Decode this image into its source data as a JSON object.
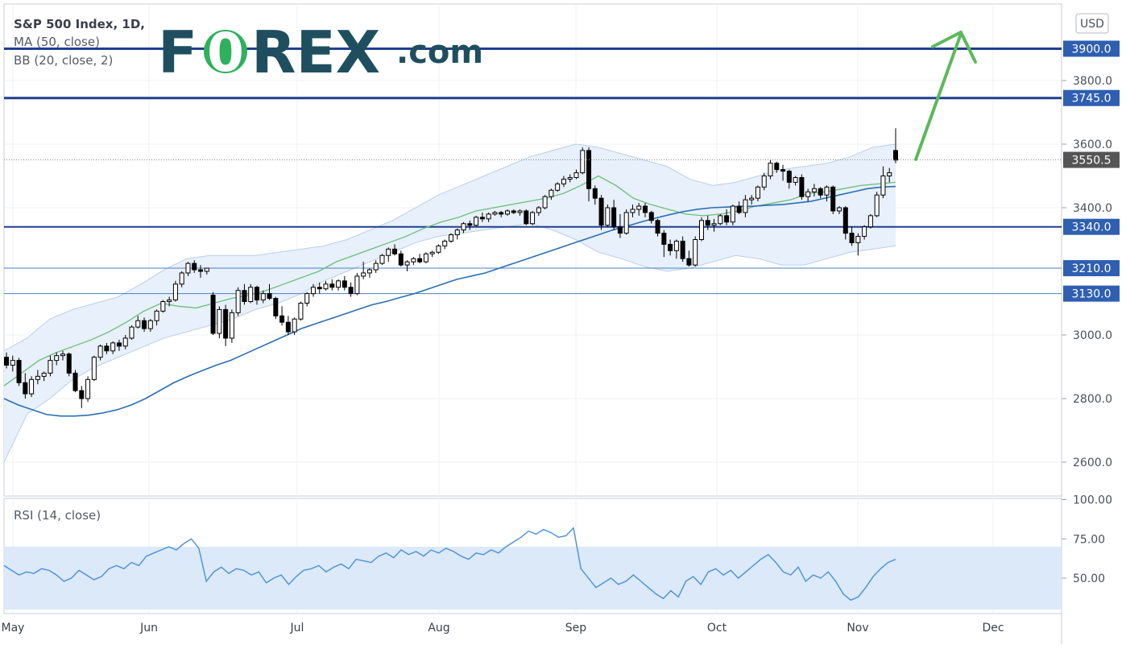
{
  "brand": {
    "logo_prefix": "F",
    "logo_o": "0",
    "logo_suffix": "REX",
    "logo_domain": ".com",
    "color_primary": "#1f4f5f",
    "color_accent": "#2eb15c"
  },
  "indicators": {
    "title": "S&P 500 Index, 1D,",
    "ma": "MA (50, close)",
    "bb": "BB (20, close, 2)",
    "rsi": "RSI (14, close)"
  },
  "currency_button": "USD",
  "colors": {
    "up_candle": "#ffffff",
    "down_candle": "#000000",
    "ma_line": "#2a6fb5",
    "bb_mid": "#6abf77",
    "bb_fill": "#e7f0fb",
    "bb_edge": "#b9cfe6",
    "level_line": "#1f3f8f",
    "level_tag": "#2f5fb0",
    "price_tag": "#555555",
    "rsi_line": "#4a90d9",
    "rsi_band": "#dbe9f8",
    "arrow": "#5cb85c"
  },
  "chart_data": [
    {
      "type": "candlestick",
      "name": "S&P 500 Index, 1D",
      "yaxis_ticks": [
        2600.0,
        2800.0,
        3000.0,
        3400.0,
        3600.0,
        3800.0
      ],
      "yaxis_tick_labels": [
        "2600.0",
        "2800.0",
        "3000.0",
        "3400.0",
        "3600.0",
        "3800.0"
      ],
      "ylim": [
        2500,
        4050
      ],
      "xaxis_labels": [
        "May",
        "Jun",
        "Jul",
        "Aug",
        "Sep",
        "Oct",
        "Nov",
        "Dec"
      ],
      "levels": [
        {
          "value": 3900.0,
          "label": "3900.0",
          "style": "thick"
        },
        {
          "value": 3745.0,
          "label": "3745.0",
          "style": "thick"
        },
        {
          "value": 3340.0,
          "label": "3340.0",
          "style": "medium"
        },
        {
          "value": 3210.0,
          "label": "3210.0",
          "style": "thin"
        },
        {
          "value": 3130.0,
          "label": "3130.0",
          "style": "thin"
        }
      ],
      "last_price": {
        "value": 3550.5,
        "label": "3550.5"
      },
      "candles_ohlc": [
        [
          2930,
          2945,
          2895,
          2905
        ],
        [
          2905,
          2935,
          2885,
          2920
        ],
        [
          2920,
          2928,
          2840,
          2850
        ],
        [
          2850,
          2880,
          2800,
          2815
        ],
        [
          2815,
          2870,
          2805,
          2860
        ],
        [
          2860,
          2890,
          2845,
          2870
        ],
        [
          2870,
          2885,
          2855,
          2880
        ],
        [
          2880,
          2935,
          2870,
          2920
        ],
        [
          2920,
          2945,
          2905,
          2935
        ],
        [
          2935,
          2950,
          2920,
          2940
        ],
        [
          2940,
          2945,
          2870,
          2880
        ],
        [
          2880,
          2890,
          2820,
          2825
        ],
        [
          2825,
          2840,
          2770,
          2800
        ],
        [
          2800,
          2870,
          2790,
          2860
        ],
        [
          2860,
          2935,
          2855,
          2930
        ],
        [
          2930,
          2970,
          2920,
          2965
        ],
        [
          2965,
          2975,
          2940,
          2950
        ],
        [
          2950,
          2980,
          2940,
          2975
        ],
        [
          2975,
          2985,
          2950,
          2965
        ],
        [
          2965,
          3000,
          2955,
          2990
        ],
        [
          2990,
          3030,
          2985,
          3025
        ],
        [
          3025,
          3060,
          3020,
          3045
        ],
        [
          3045,
          3055,
          3010,
          3020
        ],
        [
          3020,
          3050,
          3010,
          3045
        ],
        [
          3045,
          3080,
          3030,
          3075
        ],
        [
          3075,
          3110,
          3070,
          3105
        ],
        [
          3105,
          3120,
          3090,
          3110
        ],
        [
          3110,
          3170,
          3105,
          3160
        ],
        [
          3160,
          3200,
          3150,
          3195
        ],
        [
          3195,
          3230,
          3185,
          3225
        ],
        [
          3225,
          3235,
          3195,
          3205
        ],
        [
          3205,
          3220,
          3180,
          3200
        ],
        [
          3200,
          3210,
          3190,
          3210
        ],
        [
          3125,
          3135,
          3000,
          3005
        ],
        [
          3005,
          3090,
          2990,
          3080
        ],
        [
          3080,
          3095,
          2965,
          2990
        ],
        [
          2990,
          3080,
          2975,
          3070
        ],
        [
          3070,
          3150,
          3060,
          3140
        ],
        [
          3140,
          3160,
          3095,
          3105
        ],
        [
          3105,
          3160,
          3100,
          3150
        ],
        [
          3150,
          3155,
          3095,
          3110
        ],
        [
          3110,
          3140,
          3100,
          3130
        ],
        [
          3130,
          3160,
          3110,
          3115
        ],
        [
          3115,
          3120,
          3050,
          3060
        ],
        [
          3060,
          3090,
          3030,
          3040
        ],
        [
          3040,
          3060,
          3000,
          3010
        ],
        [
          3010,
          3055,
          3000,
          3050
        ],
        [
          3050,
          3105,
          3045,
          3100
        ],
        [
          3100,
          3135,
          3090,
          3130
        ],
        [
          3130,
          3160,
          3120,
          3150
        ],
        [
          3150,
          3165,
          3130,
          3145
        ],
        [
          3145,
          3170,
          3140,
          3160
        ],
        [
          3160,
          3175,
          3140,
          3150
        ],
        [
          3150,
          3175,
          3140,
          3170
        ],
        [
          3170,
          3185,
          3140,
          3150
        ],
        [
          3150,
          3165,
          3120,
          3130
        ],
        [
          3130,
          3195,
          3125,
          3185
        ],
        [
          3185,
          3230,
          3175,
          3195
        ],
        [
          3195,
          3210,
          3180,
          3205
        ],
        [
          3205,
          3235,
          3195,
          3225
        ],
        [
          3225,
          3255,
          3220,
          3250
        ],
        [
          3250,
          3275,
          3230,
          3270
        ],
        [
          3270,
          3285,
          3250,
          3255
        ],
        [
          3255,
          3265,
          3215,
          3220
        ],
        [
          3220,
          3235,
          3200,
          3230
        ],
        [
          3230,
          3245,
          3220,
          3240
        ],
        [
          3240,
          3255,
          3225,
          3230
        ],
        [
          3230,
          3260,
          3225,
          3255
        ],
        [
          3255,
          3265,
          3245,
          3260
        ],
        [
          3260,
          3285,
          3255,
          3280
        ],
        [
          3280,
          3300,
          3270,
          3295
        ],
        [
          3295,
          3320,
          3290,
          3315
        ],
        [
          3315,
          3335,
          3300,
          3330
        ],
        [
          3330,
          3355,
          3320,
          3350
        ],
        [
          3350,
          3360,
          3330,
          3345
        ],
        [
          3345,
          3375,
          3340,
          3370
        ],
        [
          3370,
          3385,
          3355,
          3365
        ],
        [
          3365,
          3385,
          3355,
          3380
        ],
        [
          3380,
          3390,
          3375,
          3385
        ],
        [
          3385,
          3390,
          3370,
          3380
        ],
        [
          3380,
          3395,
          3375,
          3390
        ],
        [
          3390,
          3395,
          3380,
          3385
        ],
        [
          3385,
          3395,
          3375,
          3390
        ],
        [
          3390,
          3395,
          3345,
          3350
        ],
        [
          3350,
          3390,
          3345,
          3385
        ],
        [
          3385,
          3405,
          3375,
          3400
        ],
        [
          3400,
          3440,
          3395,
          3435
        ],
        [
          3435,
          3460,
          3425,
          3455
        ],
        [
          3455,
          3480,
          3450,
          3475
        ],
        [
          3475,
          3500,
          3465,
          3490
        ],
        [
          3490,
          3505,
          3480,
          3495
        ],
        [
          3495,
          3520,
          3490,
          3510
        ],
        [
          3510,
          3590,
          3505,
          3580
        ],
        [
          3580,
          3590,
          3420,
          3460
        ],
        [
          3460,
          3470,
          3410,
          3430
        ],
        [
          3430,
          3440,
          3330,
          3345
        ],
        [
          3345,
          3410,
          3340,
          3400
        ],
        [
          3400,
          3425,
          3330,
          3340
        ],
        [
          3340,
          3380,
          3305,
          3320
        ],
        [
          3320,
          3395,
          3315,
          3385
        ],
        [
          3385,
          3410,
          3370,
          3395
        ],
        [
          3395,
          3415,
          3375,
          3405
        ],
        [
          3405,
          3415,
          3370,
          3385
        ],
        [
          3385,
          3390,
          3350,
          3360
        ],
        [
          3360,
          3365,
          3310,
          3320
        ],
        [
          3320,
          3330,
          3245,
          3285
        ],
        [
          3285,
          3300,
          3250,
          3265
        ],
        [
          3265,
          3300,
          3240,
          3295
        ],
        [
          3295,
          3310,
          3230,
          3240
        ],
        [
          3240,
          3265,
          3215,
          3220
        ],
        [
          3220,
          3310,
          3215,
          3300
        ],
        [
          3300,
          3370,
          3295,
          3360
        ],
        [
          3360,
          3375,
          3330,
          3345
        ],
        [
          3345,
          3365,
          3325,
          3350
        ],
        [
          3350,
          3380,
          3345,
          3375
        ],
        [
          3375,
          3395,
          3345,
          3355
        ],
        [
          3355,
          3410,
          3345,
          3405
        ],
        [
          3405,
          3420,
          3380,
          3385
        ],
        [
          3385,
          3440,
          3370,
          3425
        ],
        [
          3425,
          3440,
          3410,
          3430
        ],
        [
          3430,
          3470,
          3420,
          3465
        ],
        [
          3465,
          3510,
          3455,
          3500
        ],
        [
          3500,
          3550,
          3490,
          3540
        ],
        [
          3540,
          3545,
          3510,
          3520
        ],
        [
          3520,
          3535,
          3485,
          3515
        ],
        [
          3515,
          3520,
          3460,
          3480
        ],
        [
          3480,
          3500,
          3470,
          3495
        ],
        [
          3495,
          3505,
          3425,
          3435
        ],
        [
          3435,
          3460,
          3420,
          3450
        ],
        [
          3450,
          3475,
          3435,
          3460
        ],
        [
          3460,
          3465,
          3430,
          3440
        ],
        [
          3440,
          3470,
          3420,
          3465
        ],
        [
          3465,
          3470,
          3380,
          3390
        ],
        [
          3390,
          3405,
          3380,
          3400
        ],
        [
          3400,
          3405,
          3300,
          3320
        ],
        [
          3320,
          3340,
          3280,
          3290
        ],
        [
          3290,
          3320,
          3250,
          3310
        ],
        [
          3310,
          3345,
          3300,
          3340
        ],
        [
          3340,
          3380,
          3335,
          3375
        ],
        [
          3375,
          3450,
          3370,
          3440
        ],
        [
          3440,
          3530,
          3430,
          3500
        ],
        [
          3500,
          3525,
          3480,
          3510
        ],
        [
          3580,
          3650,
          3540,
          3550
        ]
      ],
      "ma50": [
        2800,
        2780,
        2765,
        2750,
        2745,
        2745,
        2748,
        2755,
        2765,
        2780,
        2800,
        2825,
        2850,
        2870,
        2888,
        2905,
        2920,
        2940,
        2960,
        2980,
        3000,
        3020,
        3035,
        3050,
        3065,
        3080,
        3095,
        3105,
        3118,
        3130,
        3145,
        3160,
        3175,
        3185,
        3195,
        3210,
        3225,
        3240,
        3255,
        3270,
        3285,
        3300,
        3315,
        3330,
        3342,
        3355,
        3367,
        3378,
        3388,
        3395,
        3400,
        3402,
        3404,
        3405,
        3408,
        3410,
        3415,
        3420,
        3430,
        3440,
        3450,
        3460,
        3465,
        3467
      ],
      "bb_mid": [
        2840,
        2880,
        2920,
        2945,
        2965,
        2985,
        3010,
        3040,
        3075,
        3100,
        3090,
        3085,
        3100,
        3115,
        3125,
        3140,
        3160,
        3180,
        3200,
        3230,
        3250,
        3270,
        3290,
        3310,
        3335,
        3355,
        3370,
        3390,
        3400,
        3410,
        3420,
        3430,
        3445,
        3470,
        3500,
        3470,
        3430,
        3410,
        3395,
        3380,
        3375,
        3380,
        3390,
        3405,
        3415,
        3425,
        3445,
        3450,
        3460,
        3470,
        3475,
        3480
      ],
      "bb_upper": [
        2950,
        2990,
        3050,
        3080,
        3100,
        3120,
        3160,
        3205,
        3240,
        3250,
        3250,
        3250,
        3260,
        3270,
        3280,
        3300,
        3330,
        3360,
        3400,
        3440,
        3470,
        3500,
        3530,
        3560,
        3580,
        3600,
        3590,
        3570,
        3550,
        3530,
        3490,
        3470,
        3480,
        3500,
        3520,
        3530,
        3540,
        3560,
        3590,
        3600
      ],
      "bb_lower": [
        2600,
        2750,
        2800,
        2860,
        2900,
        2930,
        2960,
        2990,
        3010,
        3030,
        3050,
        3080,
        3100,
        3130,
        3170,
        3200,
        3230,
        3260,
        3290,
        3310,
        3320,
        3330,
        3340,
        3350,
        3330,
        3300,
        3260,
        3240,
        3215,
        3200,
        3210,
        3230,
        3250,
        3240,
        3220,
        3220,
        3240,
        3260,
        3270,
        3280
      ]
    },
    {
      "type": "line",
      "name": "RSI (14, close)",
      "yaxis_tick_labels": [
        "50.00",
        "75.00",
        "100.00"
      ],
      "band": [
        30,
        70
      ],
      "values": [
        58,
        55,
        52,
        54,
        53,
        56,
        55,
        52,
        48,
        50,
        55,
        52,
        49,
        51,
        56,
        58,
        56,
        60,
        58,
        64,
        66,
        68,
        70,
        68,
        72,
        75,
        69,
        48,
        54,
        57,
        53,
        56,
        55,
        52,
        54,
        47,
        50,
        52,
        46,
        51,
        55,
        56,
        58,
        54,
        57,
        59,
        56,
        62,
        61,
        60,
        64,
        66,
        63,
        68,
        65,
        67,
        64,
        68,
        66,
        69,
        67,
        64,
        62,
        66,
        65,
        68,
        66,
        70,
        73,
        76,
        80,
        78,
        81,
        79,
        76,
        77,
        82,
        56,
        50,
        44,
        47,
        50,
        46,
        48,
        52,
        48,
        44,
        40,
        37,
        42,
        38,
        48,
        51,
        46,
        54,
        56,
        52,
        55,
        50,
        54,
        58,
        62,
        65,
        60,
        54,
        52,
        57,
        48,
        52,
        50,
        54,
        48,
        40,
        36,
        38,
        44,
        51,
        56,
        60,
        62
      ]
    }
  ]
}
